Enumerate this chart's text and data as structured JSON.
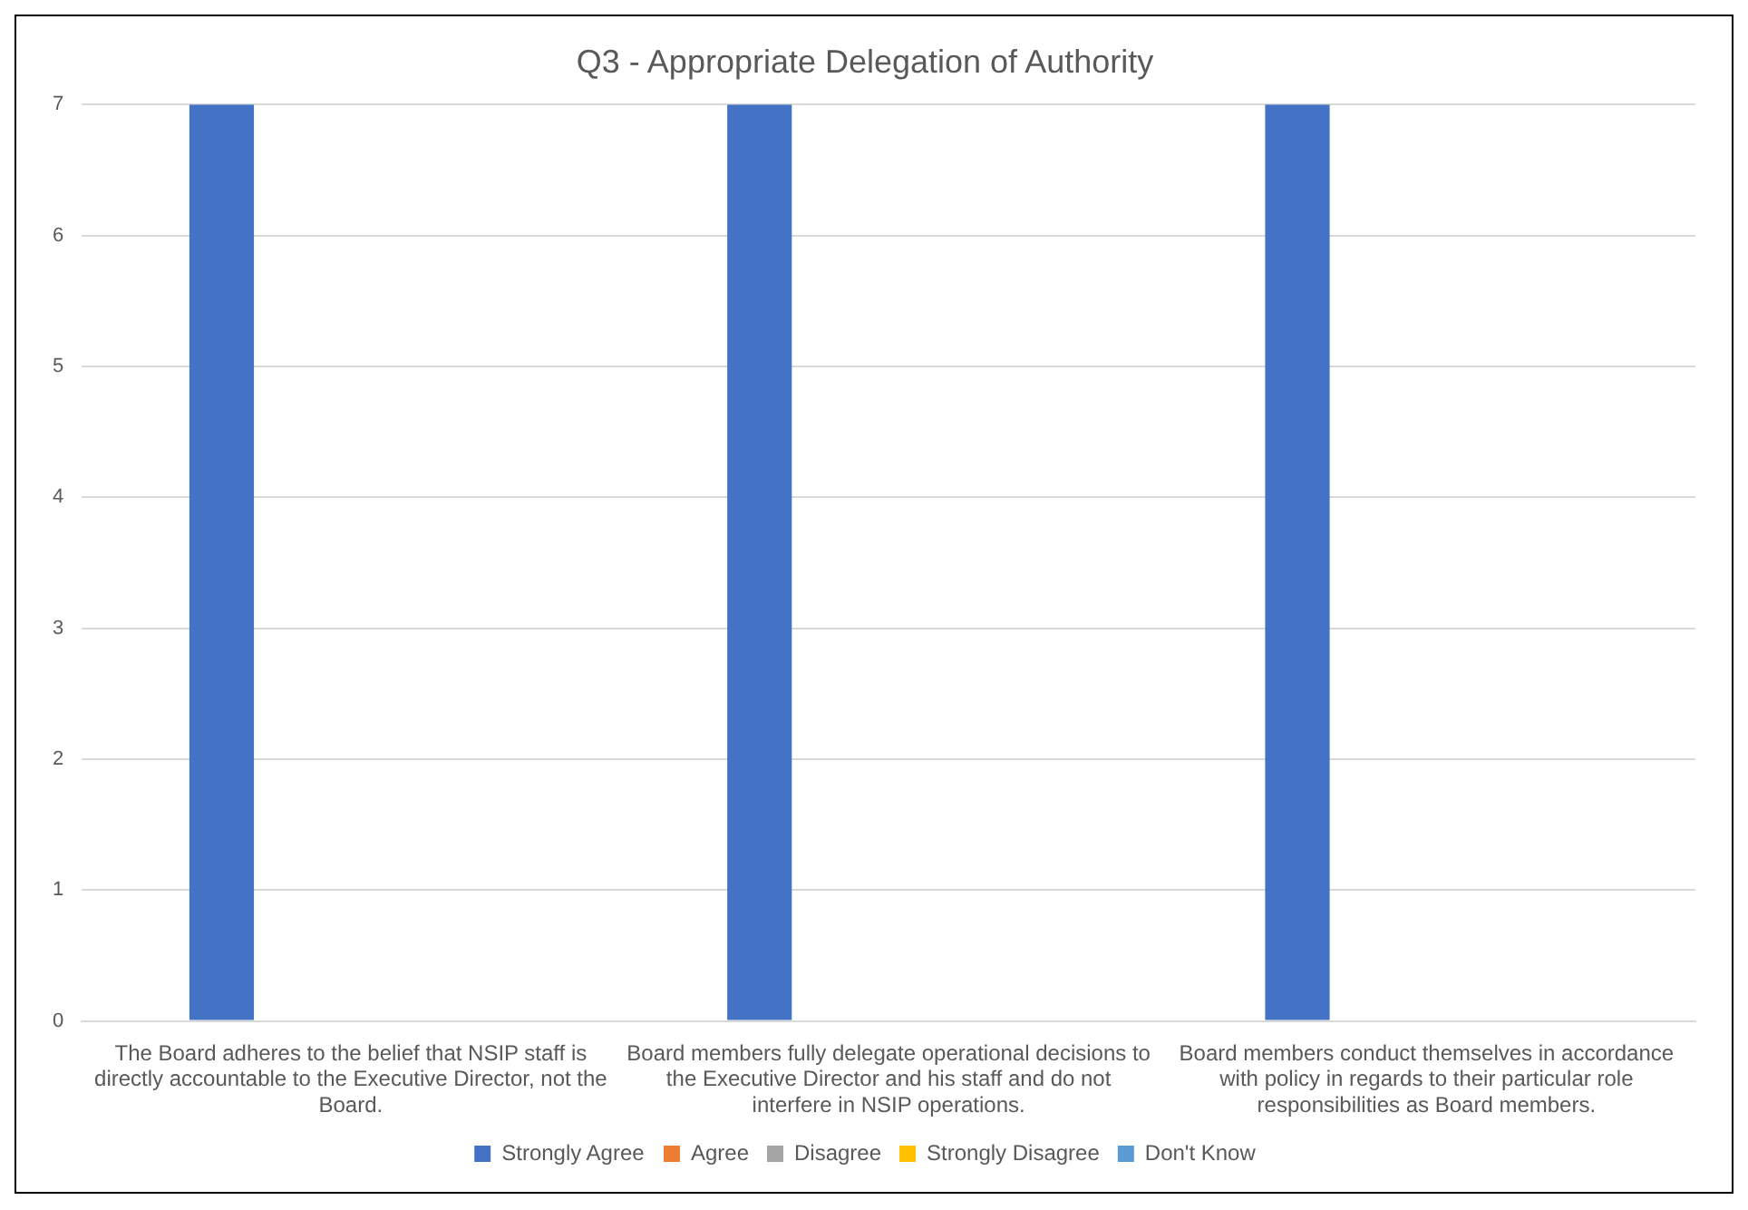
{
  "chart_data": {
    "type": "bar",
    "title": "Q3 - Appropriate Delegation of Authority",
    "categories": [
      "The Board adheres to the belief that NSIP staff is directly accountable to the Executive Director, not the Board.",
      "Board members fully delegate operational decisions to the Executive Director and his staff and do not interfere in NSIP operations.",
      "Board members conduct themselves in accordance with policy in regards to their particular role responsibilities as Board members."
    ],
    "series": [
      {
        "name": "Strongly Agree",
        "color": "#4472c4",
        "values": [
          7,
          7,
          7
        ]
      },
      {
        "name": "Agree",
        "color": "#ed7d31",
        "values": [
          0,
          0,
          0
        ]
      },
      {
        "name": "Disagree",
        "color": "#a5a5a5",
        "values": [
          0,
          0,
          0
        ]
      },
      {
        "name": "Strongly Disagree",
        "color": "#ffc000",
        "values": [
          0,
          0,
          0
        ]
      },
      {
        "name": "Don't Know",
        "color": "#5b9bd5",
        "values": [
          0,
          0,
          0
        ]
      }
    ],
    "ylim": [
      0,
      7
    ],
    "yticks": [
      0,
      1,
      2,
      3,
      4,
      5,
      6,
      7
    ],
    "grid": "y",
    "legend": "bottom"
  }
}
